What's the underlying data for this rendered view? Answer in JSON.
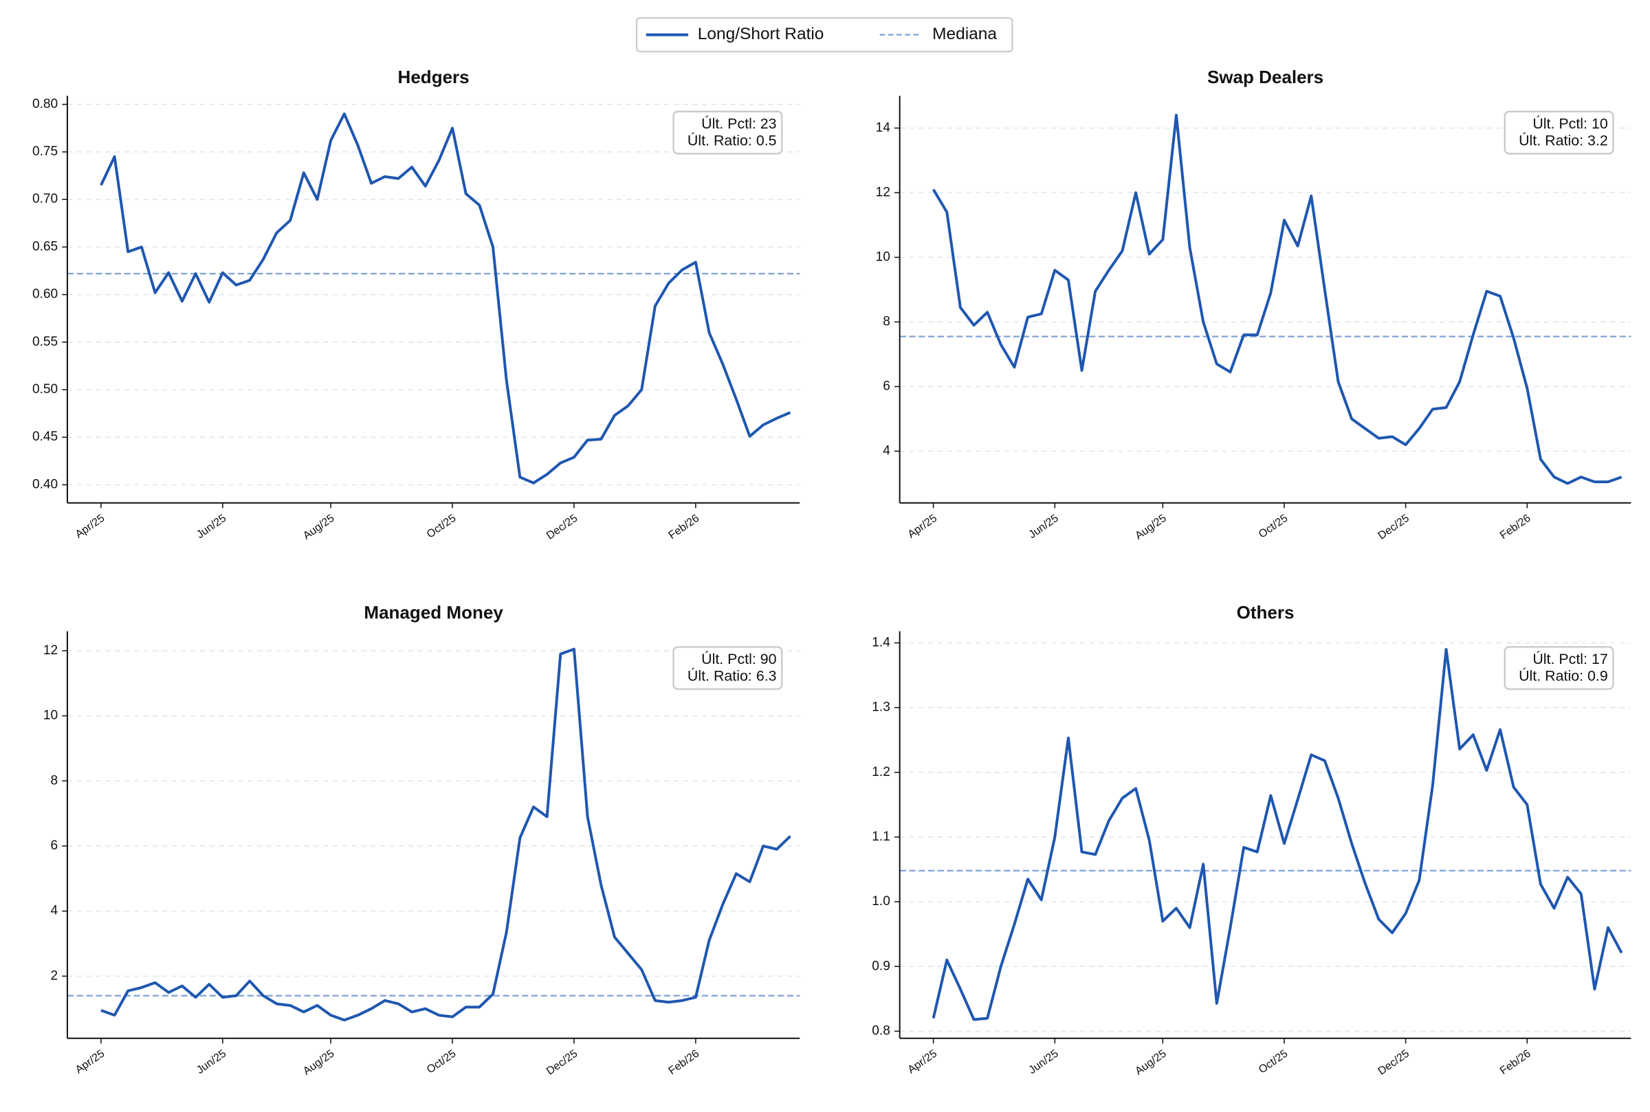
{
  "legend": [
    {
      "name": "Long/Short Ratio",
      "color": "#1f57b0"
    },
    {
      "name": "Mediana",
      "color": "#7fa3d6"
    }
  ],
  "chart_data": [
    {
      "type": "line",
      "title": "Hedgers",
      "color": "#1f57b0",
      "grid": true,
      "categories": [
        "Apr/25",
        null,
        null,
        null,
        null,
        null,
        null,
        null,
        null,
        "Jun/25",
        null,
        null,
        null,
        null,
        null,
        null,
        null,
        "Aug/25",
        null,
        null,
        null,
        null,
        null,
        null,
        null,
        null,
        "Oct/25",
        null,
        null,
        null,
        null,
        null,
        null,
        null,
        null,
        "Dec/25",
        null,
        null,
        null,
        null,
        null,
        null,
        null,
        null,
        "Feb/26",
        null,
        null,
        null,
        null,
        null,
        null,
        null
      ],
      "values": [
        0.715,
        0.745,
        0.645,
        0.65,
        0.602,
        0.623,
        0.593,
        0.622,
        0.592,
        0.623,
        0.61,
        0.615,
        0.637,
        0.665,
        0.678,
        0.728,
        0.7,
        0.762,
        0.79,
        0.757,
        0.717,
        0.724,
        0.722,
        0.734,
        0.714,
        0.741,
        0.775,
        0.706,
        0.694,
        0.65,
        0.51,
        0.408,
        0.402,
        0.411,
        0.423,
        0.429,
        0.447,
        0.448,
        0.473,
        0.483,
        0.5,
        0.588,
        0.612,
        0.626,
        0.634,
        0.56,
        0.527,
        0.49,
        0.451,
        0.463,
        0.47,
        0.476
      ],
      "median": 0.622,
      "median_color": "#7fa3d6",
      "annotation": [
        "Últ. Pctl: 23",
        "Últ. Ratio: 0.5"
      ],
      "ylim": [
        0.381,
        0.809
      ],
      "yticks": [
        {
          "value": 0.4,
          "label": "0.40"
        },
        {
          "value": 0.45,
          "label": "0.45"
        },
        {
          "value": 0.5,
          "label": "0.50"
        },
        {
          "value": 0.55,
          "label": "0.55"
        },
        {
          "value": 0.6,
          "label": "0.60"
        },
        {
          "value": 0.65,
          "label": "0.65"
        },
        {
          "value": 0.7,
          "label": "0.70"
        },
        {
          "value": 0.75,
          "label": "0.75"
        },
        {
          "value": 0.8,
          "label": "0.80"
        }
      ]
    },
    {
      "type": "line",
      "title": "Swap Dealers",
      "color": "#1f57b0",
      "grid": true,
      "categories": [
        "Apr/25",
        null,
        null,
        null,
        null,
        null,
        null,
        null,
        null,
        "Jun/25",
        null,
        null,
        null,
        null,
        null,
        null,
        null,
        "Aug/25",
        null,
        null,
        null,
        null,
        null,
        null,
        null,
        null,
        "Oct/25",
        null,
        null,
        null,
        null,
        null,
        null,
        null,
        null,
        "Dec/25",
        null,
        null,
        null,
        null,
        null,
        null,
        null,
        null,
        "Feb/26",
        null,
        null,
        null,
        null,
        null,
        null,
        null
      ],
      "values": [
        12.1,
        11.4,
        8.45,
        7.9,
        8.3,
        7.3,
        6.6,
        8.15,
        8.25,
        9.6,
        9.3,
        6.5,
        8.95,
        9.6,
        10.2,
        12.0,
        10.1,
        10.55,
        14.4,
        10.3,
        8.0,
        6.7,
        6.45,
        7.6,
        7.6,
        8.9,
        11.15,
        10.35,
        11.9,
        9.0,
        6.15,
        5.0,
        4.7,
        4.4,
        4.45,
        4.2,
        4.7,
        5.3,
        5.35,
        6.15,
        7.6,
        8.95,
        8.8,
        7.5,
        5.95,
        3.75,
        3.2,
        3.0,
        3.2,
        3.05,
        3.05,
        3.2
      ],
      "median": 7.55,
      "median_color": "#7fa3d6",
      "annotation": [
        "Últ. Pctl: 10",
        "Últ. Ratio: 3.2"
      ],
      "ylim": [
        2.4,
        15.0
      ],
      "yticks": [
        4,
        6,
        8,
        10,
        12,
        14
      ]
    },
    {
      "type": "line",
      "title": "Managed Money",
      "color": "#1f57b0",
      "grid": true,
      "categories": [
        "Apr/25",
        null,
        null,
        null,
        null,
        null,
        null,
        null,
        null,
        "Jun/25",
        null,
        null,
        null,
        null,
        null,
        null,
        null,
        "Aug/25",
        null,
        null,
        null,
        null,
        null,
        null,
        null,
        null,
        "Oct/25",
        null,
        null,
        null,
        null,
        null,
        null,
        null,
        null,
        "Dec/25",
        null,
        null,
        null,
        null,
        null,
        null,
        null,
        null,
        "Feb/26",
        null,
        null,
        null,
        null,
        null,
        null,
        null
      ],
      "values": [
        0.95,
        0.8,
        1.55,
        1.65,
        1.8,
        1.5,
        1.7,
        1.35,
        1.75,
        1.35,
        1.4,
        1.85,
        1.4,
        1.15,
        1.1,
        0.9,
        1.1,
        0.8,
        0.65,
        0.8,
        1.0,
        1.25,
        1.15,
        0.9,
        1.0,
        0.8,
        0.75,
        1.05,
        1.05,
        1.45,
        3.35,
        6.25,
        7.2,
        6.9,
        11.9,
        12.05,
        6.9,
        4.8,
        3.2,
        2.7,
        2.2,
        1.25,
        1.2,
        1.25,
        1.35,
        3.1,
        4.2,
        5.15,
        4.9,
        6.0,
        5.9,
        6.3
      ],
      "median": 1.4,
      "median_color": "#7fa3d6",
      "annotation": [
        "Últ. Pctl: 90",
        "Últ. Ratio: 6.3"
      ],
      "ylim": [
        0.09,
        12.6
      ],
      "yticks": [
        2,
        4,
        6,
        8,
        10,
        12
      ]
    },
    {
      "type": "line",
      "title": "Others",
      "color": "#1f57b0",
      "grid": true,
      "categories": [
        "Apr/25",
        null,
        null,
        null,
        null,
        null,
        null,
        null,
        null,
        "Jun/25",
        null,
        null,
        null,
        null,
        null,
        null,
        null,
        "Aug/25",
        null,
        null,
        null,
        null,
        null,
        null,
        null,
        null,
        "Oct/25",
        null,
        null,
        null,
        null,
        null,
        null,
        null,
        null,
        "Dec/25",
        null,
        null,
        null,
        null,
        null,
        null,
        null,
        null,
        "Feb/26",
        null,
        null,
        null,
        null,
        null,
        null,
        null
      ],
      "values": [
        0.82,
        0.91,
        0.865,
        0.818,
        0.82,
        0.9,
        0.965,
        1.035,
        1.003,
        1.1,
        1.253,
        1.077,
        1.073,
        1.125,
        1.16,
        1.175,
        1.095,
        0.97,
        0.99,
        0.96,
        1.058,
        0.843,
        0.96,
        1.084,
        1.077,
        1.164,
        1.09,
        1.158,
        1.227,
        1.218,
        1.16,
        1.09,
        1.028,
        0.973,
        0.952,
        0.982,
        1.033,
        1.18,
        1.39,
        1.236,
        1.258,
        1.203,
        1.266,
        1.177,
        1.15,
        1.027,
        0.99,
        1.038,
        1.012,
        0.865,
        0.96,
        0.921
      ],
      "median": 1.048,
      "median_color": "#7fa3d6",
      "annotation": [
        "Últ. Pctl: 17",
        "Últ. Ratio: 0.9"
      ],
      "ylim": [
        0.789,
        1.418
      ],
      "yticks": [
        0.8,
        0.9,
        {
          "value": 1.0,
          "label": "1.0"
        },
        1.1,
        1.2,
        1.3,
        1.4
      ]
    }
  ]
}
